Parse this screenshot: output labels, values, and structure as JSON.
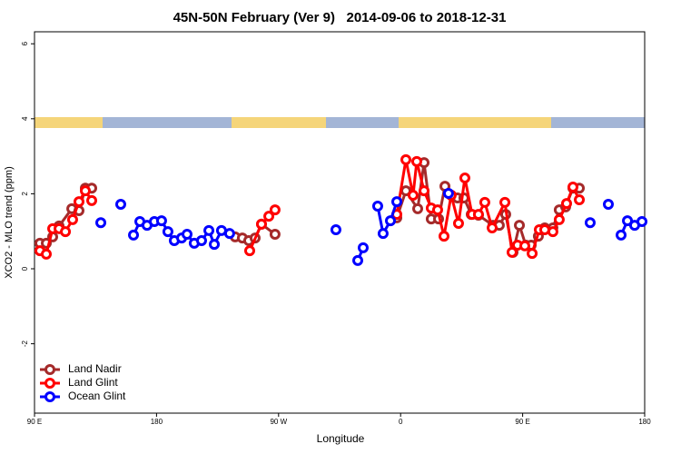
{
  "chart_data": {
    "type": "line",
    "title": "45N-50N February (Ver 9)   2014-09-06 to 2018-12-31",
    "x_label": "Longitude",
    "y_label": "XCO2 - MLO trend (ppm)",
    "xlim": [
      90,
      540
    ],
    "ylim": [
      -3.85,
      6.32
    ],
    "xticks": [
      {
        "value": 90,
        "label": "90 E"
      },
      {
        "value": 180,
        "label": "180"
      },
      {
        "value": 270,
        "label": "90 W"
      },
      {
        "value": 360,
        "label": "0"
      },
      {
        "value": 450,
        "label": "90 E"
      },
      {
        "value": 540,
        "label": "180"
      }
    ],
    "yticks": [
      -2,
      0,
      2,
      4,
      6
    ],
    "legend": "bottom-left",
    "series": [
      {
        "name": "Land Nadir",
        "color": "#a52a2a",
        "x": [
          94.0,
          98.7,
          103.4,
          108.1,
          117.5,
          122.8,
          127.5,
          132.2,
          null,
          238.0,
          243.3,
          248.0,
          252.7,
          257.4,
          267.4,
          null,
          357.2,
          363.9,
          372.6,
          377.3,
          382.6,
          388.0,
          392.7,
          397.3,
          402.0,
          406.7,
          412.1,
          417.4,
          428.1,
          432.8,
          437.5,
          442.9,
          447.6,
          452.3,
          456.3,
          461.6,
          466.3,
          472.3,
          477.0,
          481.7,
          487.1,
          491.8
        ],
        "values": [
          0.68,
          0.68,
          0.85,
          1.14,
          1.6,
          1.55,
          2.15,
          2.15,
          null,
          0.85,
          0.82,
          0.75,
          0.82,
          1.19,
          0.92,
          null,
          1.36,
          2.08,
          1.6,
          2.83,
          1.33,
          1.33,
          2.2,
          1.96,
          1.89,
          1.89,
          1.45,
          1.43,
          1.16,
          1.16,
          1.45,
          0.44,
          1.16,
          0.63,
          0.63,
          0.87,
          1.09,
          1.09,
          1.57,
          1.65,
          2.15,
          2.15
        ]
      },
      {
        "name": "Land Glint",
        "color": "#ff0000",
        "x": [
          94.0,
          98.7,
          103.4,
          108.1,
          112.8,
          118.1,
          122.8,
          127.5,
          132.2,
          null,
          248.7,
          257.4,
          262.8,
          267.4,
          null,
          357.2,
          363.9,
          369.2,
          371.9,
          377.3,
          382.6,
          387.3,
          392.0,
          397.3,
          402.7,
          407.4,
          412.7,
          417.4,
          422.1,
          427.5,
          436.9,
          442.2,
          446.2,
          451.6,
          457.0,
          462.3,
          466.3,
          472.3,
          477.0,
          482.4,
          487.1,
          491.8
        ],
        "values": [
          0.48,
          0.39,
          1.07,
          1.07,
          0.99,
          1.31,
          1.79,
          2.08,
          1.82,
          null,
          0.48,
          1.19,
          1.4,
          1.57,
          null,
          1.45,
          2.91,
          1.96,
          2.86,
          2.08,
          1.62,
          1.57,
          0.87,
          1.96,
          1.21,
          2.42,
          1.45,
          1.45,
          1.77,
          1.09,
          1.77,
          0.44,
          0.63,
          0.61,
          0.41,
          1.04,
          1.04,
          0.99,
          1.31,
          1.74,
          2.18,
          1.84
        ]
      },
      {
        "name": "Ocean Glint",
        "color": "#0000ff",
        "x": [
          138.9,
          null,
          153.6,
          null,
          163.0,
          167.7,
          173.0,
          178.4,
          183.7,
          188.4,
          193.1,
          198.5,
          202.5,
          207.8,
          213.2,
          218.6,
          222.6,
          227.9,
          233.9,
          null,
          312.3,
          null,
          328.4,
          332.4,
          null,
          343.1,
          347.1,
          352.5,
          357.2,
          null,
          395.3,
          null,
          499.8,
          null,
          513.2,
          null,
          522.6,
          527.3,
          532.6,
          538.0
        ],
        "values": [
          1.23,
          null,
          1.72,
          null,
          0.9,
          1.26,
          1.16,
          1.26,
          1.28,
          0.99,
          0.75,
          0.82,
          0.92,
          0.68,
          0.75,
          1.02,
          0.65,
          1.02,
          0.94,
          null,
          1.04,
          null,
          0.22,
          0.56,
          null,
          1.67,
          0.94,
          1.28,
          1.79,
          null,
          2.01,
          null,
          1.23,
          null,
          1.72,
          null,
          0.9,
          1.28,
          1.16,
          1.26
        ]
      }
    ]
  }
}
